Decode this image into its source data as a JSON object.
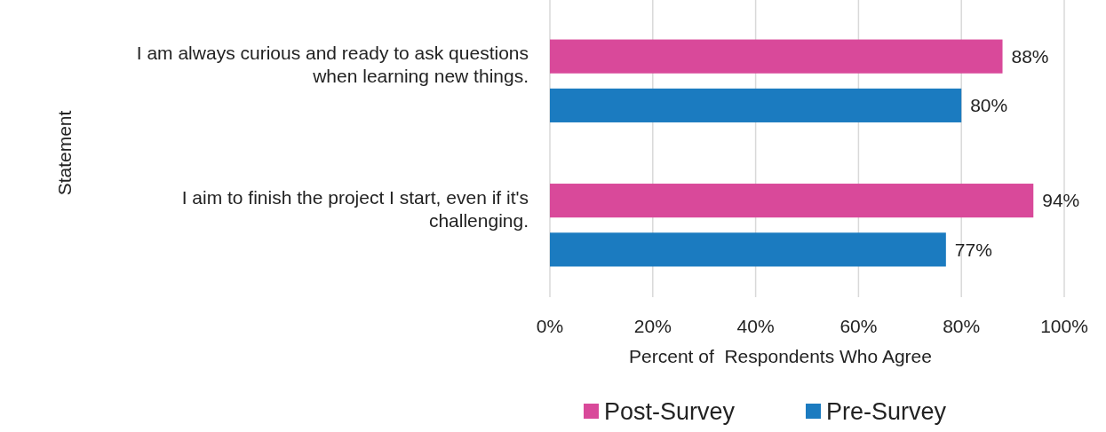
{
  "chart_data": {
    "type": "bar",
    "orientation": "horizontal",
    "categories": [
      "I am always curious and ready to ask questions when learning new things.",
      "I aim to finish the project I start, even if it's challenging."
    ],
    "series": [
      {
        "name": "Post-Survey",
        "color": "#d9499a",
        "values": [
          88,
          94
        ],
        "value_labels": [
          "88%",
          "94%"
        ]
      },
      {
        "name": "Pre-Survey",
        "color": "#1b7bc0",
        "values": [
          80,
          77
        ],
        "value_labels": [
          "80%",
          "77%"
        ]
      }
    ],
    "xlim": [
      0,
      100
    ],
    "xticks": [
      {
        "value": 0,
        "label": "0%"
      },
      {
        "value": 20,
        "label": "20%"
      },
      {
        "value": 40,
        "label": "40%"
      },
      {
        "value": 60,
        "label": "60%"
      },
      {
        "value": 80,
        "label": "80%"
      },
      {
        "value": 100,
        "label": "100%"
      }
    ],
    "xlabel": "Percent of  Respondents Who Agree",
    "ylabel": "Statement",
    "grid": "x",
    "legend": "bottom"
  }
}
